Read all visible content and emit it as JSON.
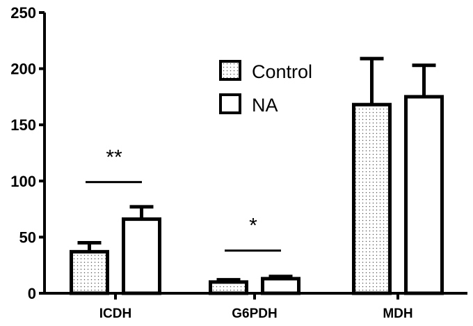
{
  "chart_data": {
    "type": "bar",
    "title": "",
    "xlabel": "",
    "ylabel": "",
    "ylim": [
      0,
      250
    ],
    "yticks": [
      0,
      50,
      100,
      150,
      200,
      250
    ],
    "grid": false,
    "legend": "top-center",
    "categories": [
      "ICDH",
      "G6PDH",
      "MDH"
    ],
    "series": [
      {
        "name": "Control",
        "fill": "dotted",
        "values": [
          37,
          10,
          168
        ],
        "errors": [
          8,
          2,
          41
        ]
      },
      {
        "name": "NA",
        "fill": "white",
        "values": [
          66,
          13,
          175
        ],
        "errors": [
          11,
          2,
          28
        ]
      }
    ],
    "annotations": [
      {
        "text": "**",
        "category": "ICDH",
        "line_y": 99
      },
      {
        "text": "*",
        "category": "G6PDH",
        "line_y": 38
      }
    ],
    "colors": {
      "axis": "#000000",
      "dots": "#555555",
      "bar_bg": "#ffffff"
    }
  }
}
